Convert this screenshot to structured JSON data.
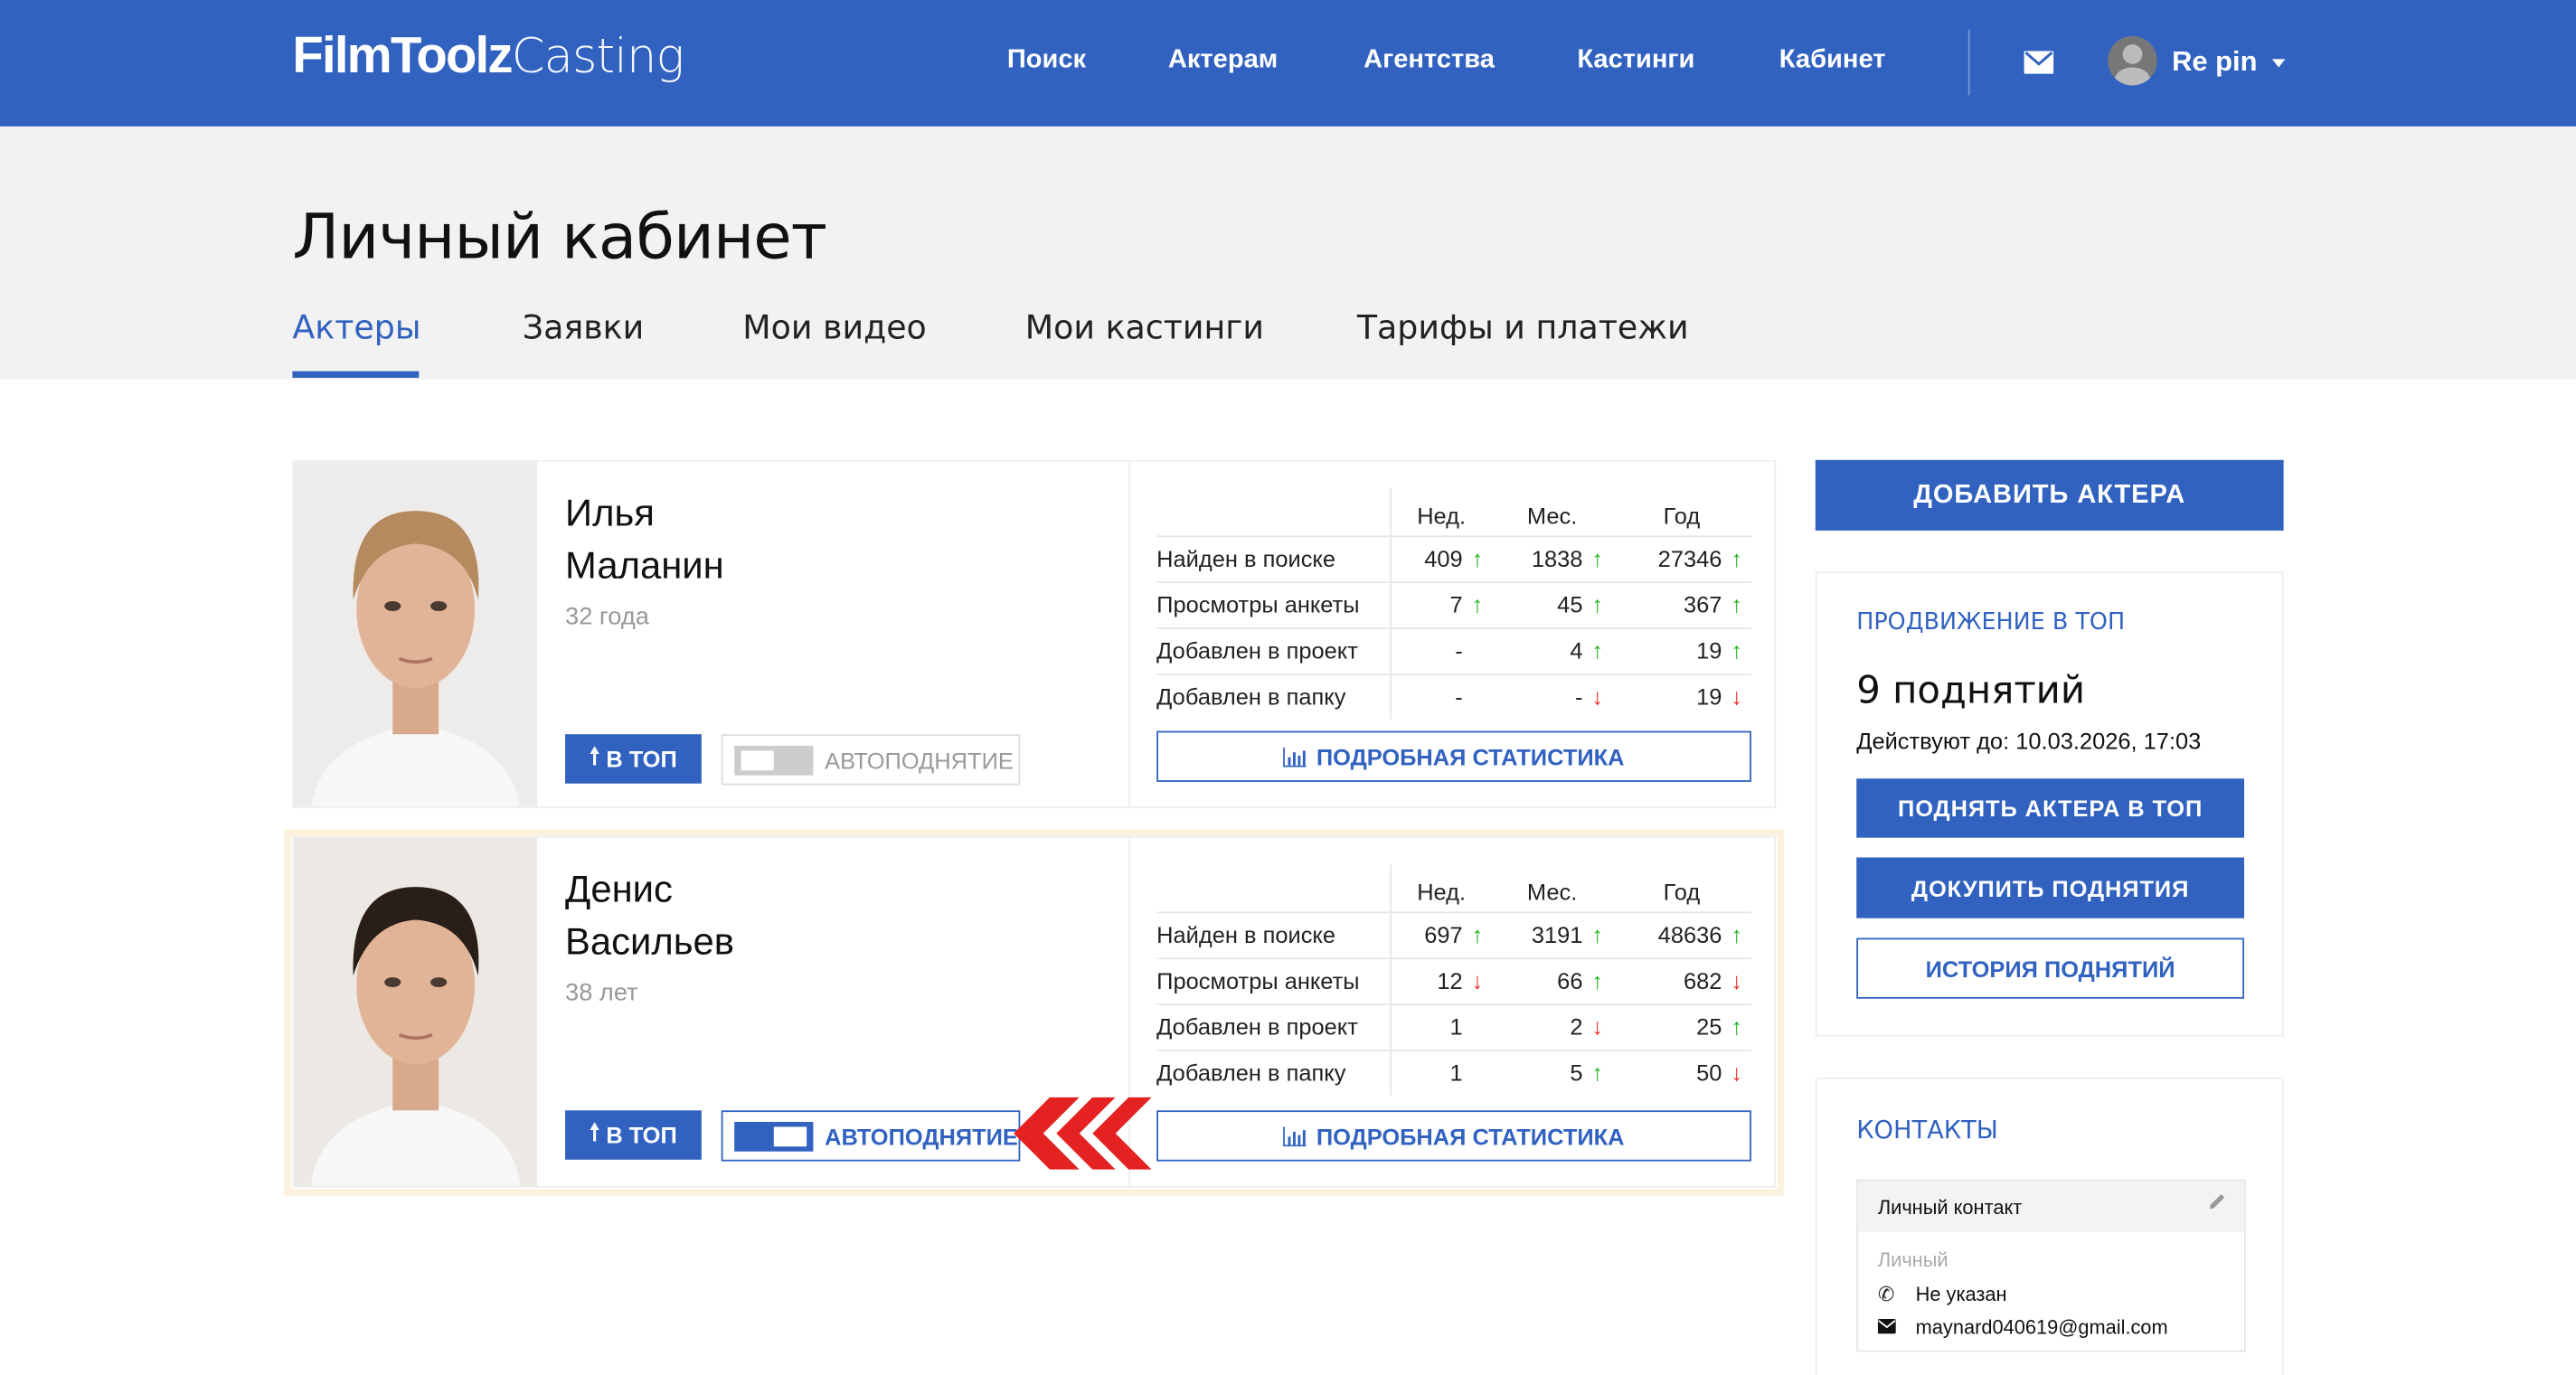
{
  "header": {
    "logo_bold": "FilmToolz",
    "logo_light": "Casting",
    "nav": [
      "Поиск",
      "Актерам",
      "Агентства",
      "Кастинги",
      "Кабинет"
    ],
    "user_name": "Re pin",
    "accent_color": "#3162c0"
  },
  "page": {
    "title": "Личный кабинет",
    "tabs": [
      {
        "label": "Актеры",
        "active": true
      },
      {
        "label": "Заявки"
      },
      {
        "label": "Мои видео"
      },
      {
        "label": "Мои кастинги"
      },
      {
        "label": "Тарифы и платежи"
      }
    ]
  },
  "stats_headers": [
    "Нед.",
    "Мес.",
    "Год"
  ],
  "actors": [
    {
      "first": "Илья",
      "last": "Маланин",
      "age": "32 года",
      "top_label": "В ТОП",
      "auto_label": "АВТОПОДНЯТИЕ",
      "auto_on": false,
      "stats_button": "ПОДРОБНАЯ СТАТИСТИКА",
      "rows": [
        {
          "label": "Найден в поиске",
          "cells": [
            {
              "v": "409",
              "d": "up"
            },
            {
              "v": "1838",
              "d": "up"
            },
            {
              "v": "27346",
              "d": "up"
            }
          ]
        },
        {
          "label": "Просмотры анкеты",
          "cells": [
            {
              "v": "7",
              "d": "up"
            },
            {
              "v": "45",
              "d": "up"
            },
            {
              "v": "367",
              "d": "up"
            }
          ]
        },
        {
          "label": "Добавлен в проект",
          "cells": [
            {
              "v": "-",
              "d": ""
            },
            {
              "v": "4",
              "d": "up"
            },
            {
              "v": "19",
              "d": "up"
            }
          ]
        },
        {
          "label": "Добавлен в папку",
          "cells": [
            {
              "v": "-",
              "d": ""
            },
            {
              "v": "-",
              "d": "down"
            },
            {
              "v": "19",
              "d": "down"
            }
          ]
        }
      ]
    },
    {
      "first": "Денис",
      "last": "Васильев",
      "age": "38 лет",
      "top_label": "В ТОП",
      "auto_label": "АВТОПОДНЯТИЕ",
      "auto_on": true,
      "stats_button": "ПОДРОБНАЯ СТАТИСТИКА",
      "rows": [
        {
          "label": "Найден в поиске",
          "cells": [
            {
              "v": "697",
              "d": "up"
            },
            {
              "v": "3191",
              "d": "up"
            },
            {
              "v": "48636",
              "d": "up"
            }
          ]
        },
        {
          "label": "Просмотры анкеты",
          "cells": [
            {
              "v": "12",
              "d": "down"
            },
            {
              "v": "66",
              "d": "up"
            },
            {
              "v": "682",
              "d": "down"
            }
          ]
        },
        {
          "label": "Добавлен в проект",
          "cells": [
            {
              "v": "1",
              "d": ""
            },
            {
              "v": "2",
              "d": "down"
            },
            {
              "v": "25",
              "d": "up"
            }
          ]
        },
        {
          "label": "Добавлен в папку",
          "cells": [
            {
              "v": "1",
              "d": ""
            },
            {
              "v": "5",
              "d": "up"
            },
            {
              "v": "50",
              "d": "down"
            }
          ]
        }
      ]
    }
  ],
  "sidebar": {
    "add_actor": "ДОБАВИТЬ АКТЕРА",
    "promo": {
      "title": "ПРОДВИЖЕНИЕ В ТОП",
      "count": "9 поднятий",
      "valid_until": "Действуют до: 10.03.2026, 17:03",
      "raise_btn": "ПОДНЯТЬ АКТЕРА В ТОП",
      "buy_btn": "ДОКУПИТЬ ПОДНЯТИЯ",
      "history_btn": "ИСТОРИЯ ПОДНЯТИЙ"
    },
    "contacts": {
      "title": "КОНТАКТЫ",
      "card_title": "Личный контакт",
      "type": "Личный",
      "phone": "Не указан",
      "email": "maynard040619@gmail.com"
    }
  }
}
